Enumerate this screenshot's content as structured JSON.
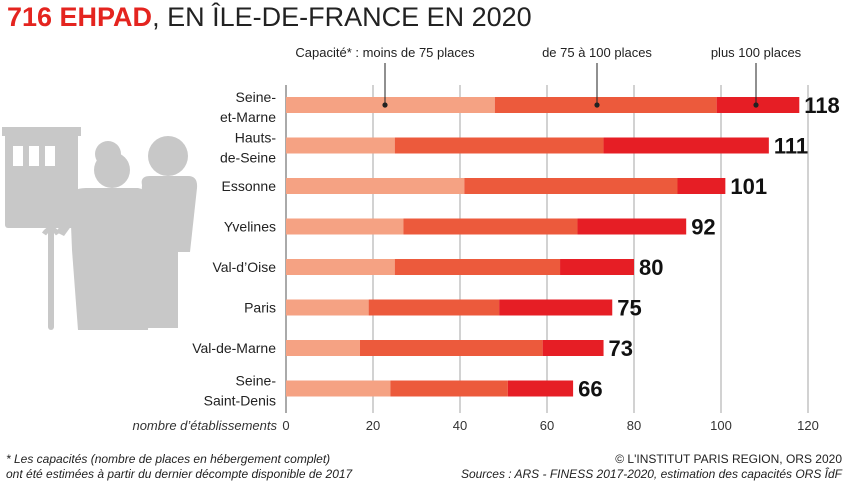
{
  "title": {
    "strong": "716 EHPAD",
    "rest": ", EN ÎLE-DE-FRANCE EN 2020"
  },
  "colors": {
    "small": "#f5a283",
    "medium": "#ec5a3c",
    "large": "#e61e25",
    "grid": "#b3b3b3",
    "pictogram": "#c8c8c8"
  },
  "icons": [
    "building-icon",
    "elderly-couple-icon"
  ],
  "chart_data": {
    "type": "bar",
    "orientation": "horizontal",
    "stacked": true,
    "title": "716 EHPAD, EN ÎLE-DE-FRANCE EN 2020",
    "xlabel": "nombre d’établissements",
    "xlim": [
      0,
      125
    ],
    "xticks": [
      0,
      20,
      40,
      60,
      80,
      100,
      120
    ],
    "grid": true,
    "legend_position": "top",
    "legend_prefix": "Capacité* : ",
    "categories": [
      [
        "Seine-",
        "et-Marne"
      ],
      [
        "Hauts-",
        "de-Seine"
      ],
      [
        "Essonne"
      ],
      [
        "Yvelines"
      ],
      [
        "Val-d’Oise"
      ],
      [
        "Paris"
      ],
      [
        "Val-de-Marne"
      ],
      [
        "Seine-",
        "Saint-Denis"
      ]
    ],
    "series": [
      {
        "name": "moins de 75 places",
        "values": [
          48,
          25,
          41,
          27,
          25,
          19,
          17,
          24
        ]
      },
      {
        "name": "de 75 à 100 places",
        "values": [
          51,
          48,
          49,
          40,
          38,
          30,
          42,
          27
        ]
      },
      {
        "name": "plus 100 places",
        "values": [
          19,
          38,
          11,
          25,
          17,
          26,
          14,
          15
        ]
      }
    ],
    "totals": [
      118,
      111,
      101,
      92,
      80,
      75,
      73,
      66
    ]
  },
  "footer": {
    "note_line1": "* Les capacités (nombre de places en hébergement complet)",
    "note_line2": "ont été estimées à partir du dernier décompte disponible de 2017",
    "credit": "© L'INSTITUT PARIS REGION, ORS 2020",
    "sources": "Sources : ARS - FINESS 2017-2020, estimation des capacités ORS ÎdF"
  }
}
